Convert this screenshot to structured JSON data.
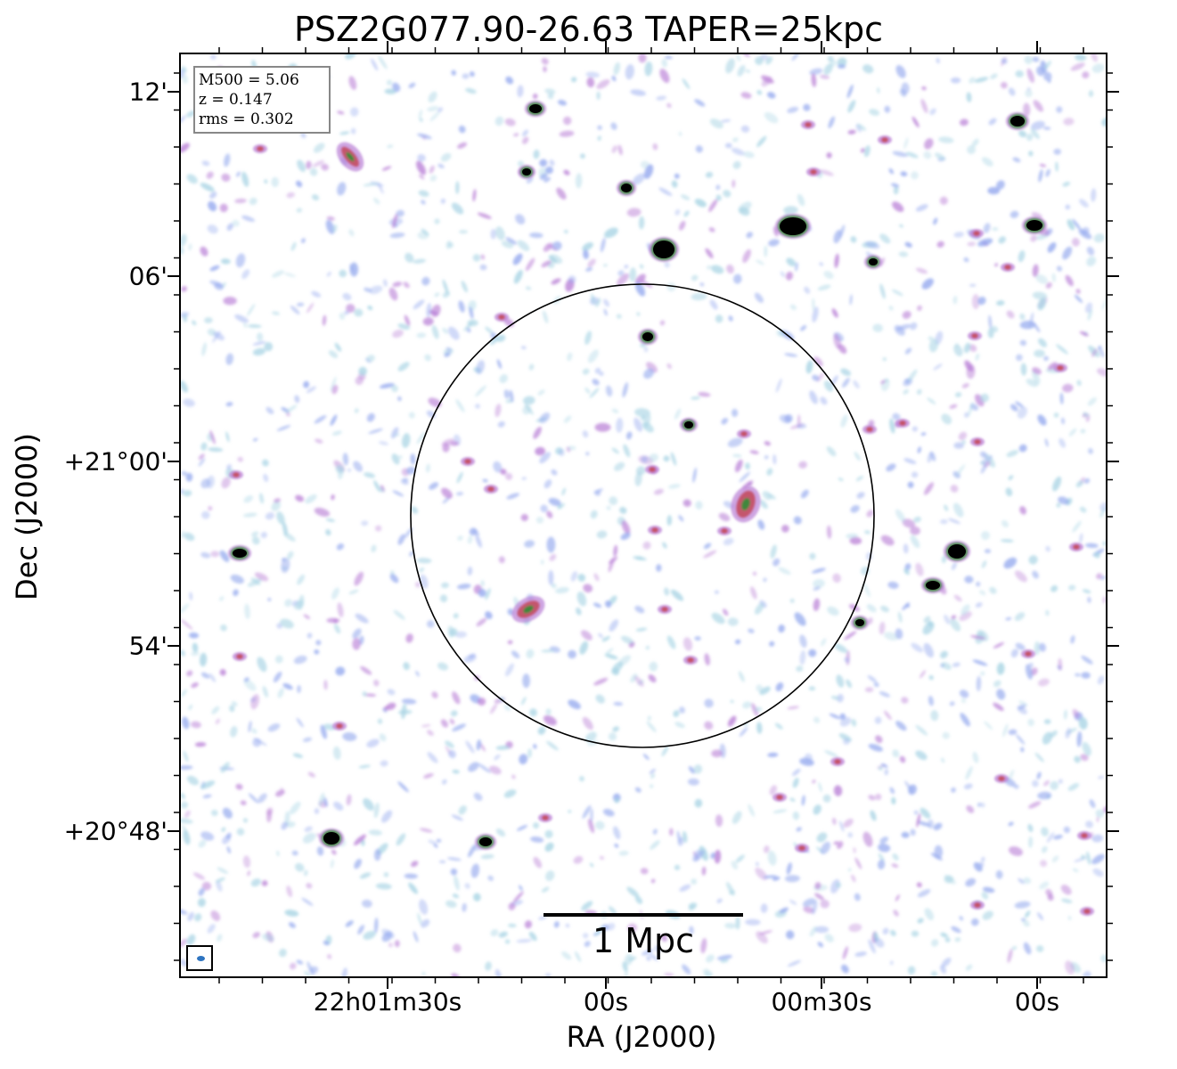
{
  "title": "PSZ2G077.90-26.63 TAPER=25kpc",
  "axes": {
    "x_label": "RA (J2000)",
    "y_label": "Dec (J2000)",
    "x_ticks": [
      "22h01m30s",
      "00s",
      "00m30s",
      "00s"
    ],
    "y_ticks": [
      "12'",
      "06'",
      "+21°00'",
      "54'",
      "+20°48'"
    ]
  },
  "info_box": {
    "m500": "M500 = 5.06",
    "z": "z = 0.147",
    "rms": "rms = 0.302"
  },
  "scale_bar": {
    "label": "1 Mpc"
  },
  "colors": {
    "noise_light": "#a8d4e4",
    "noise_blue": "#93a8ee",
    "emission_purple": "#b97fd6",
    "emission_red": "#c34a5a",
    "emission_green": "#3a8a3a",
    "source_core": "#000000",
    "circle": "#000000",
    "beam": "#2e74c0"
  }
}
